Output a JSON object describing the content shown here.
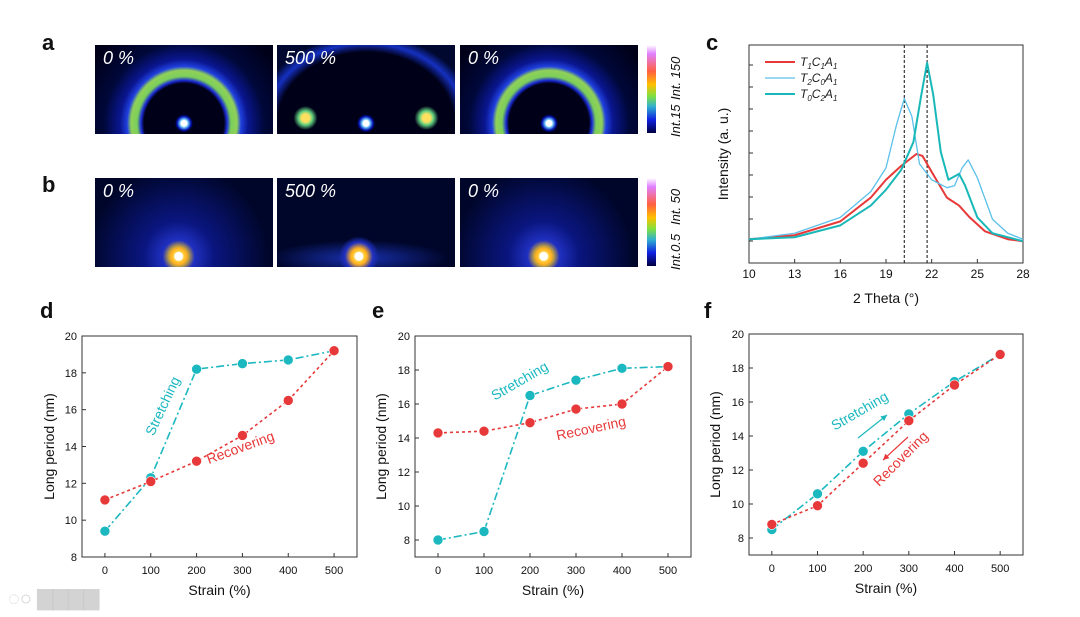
{
  "panel_letters": {
    "a": "a",
    "b": "b",
    "c": "c",
    "d": "d",
    "e": "e",
    "f": "f"
  },
  "panel_a": {
    "images": [
      {
        "label": "0 %"
      },
      {
        "label": "500 %"
      },
      {
        "label": "0 %"
      }
    ],
    "colorbar": {
      "max": "Int. 150",
      "min": "Int.15"
    }
  },
  "panel_b": {
    "images": [
      {
        "label": "0 %"
      },
      {
        "label": "500 %"
      },
      {
        "label": "0 %"
      }
    ],
    "colorbar": {
      "max": "Int. 50",
      "min": "Int.0.5"
    }
  },
  "watermark": "大数跨境",
  "chart_data": [
    {
      "id": "c",
      "type": "line",
      "xlabel": "2 Theta (°)",
      "ylabel": "Intensity (a. u.)",
      "xlim": [
        10,
        28
      ],
      "ylim": [
        0,
        11
      ],
      "xticks": [
        10,
        13,
        16,
        19,
        22,
        25,
        28
      ],
      "xtick_labels": [
        "10",
        "13",
        "16",
        "19",
        "22",
        "25",
        "28"
      ],
      "vlines": [
        20.2,
        21.7
      ],
      "legend": "top-left",
      "series": [
        {
          "name": "T1C1A1",
          "color": "#e8393a",
          "width": 2,
          "x": [
            10,
            13,
            16,
            18,
            19,
            20,
            21,
            21.4,
            22,
            23,
            23.8,
            24.5,
            25.5,
            27,
            28
          ],
          "y": [
            1.2,
            1.4,
            2.1,
            3.3,
            4.2,
            4.9,
            5.5,
            5.4,
            4.6,
            3.3,
            2.9,
            2.3,
            1.6,
            1.2,
            1.1
          ]
        },
        {
          "name": "T2C0A1",
          "color": "#5bc0ea",
          "width": 1.3,
          "x": [
            10,
            13,
            16,
            18,
            19,
            19.7,
            20.2,
            20.7,
            21.2,
            22,
            23,
            23.5,
            24,
            24.4,
            25,
            26,
            27,
            28
          ],
          "y": [
            1.2,
            1.5,
            2.3,
            3.6,
            4.8,
            7.0,
            8.3,
            7.4,
            5.0,
            4.2,
            3.8,
            3.9,
            4.8,
            5.2,
            4.3,
            2.2,
            1.5,
            1.2
          ]
        },
        {
          "name": "T0C2A1",
          "color": "#19b8b8",
          "width": 2,
          "x": [
            10,
            13,
            16,
            18,
            19,
            20,
            20.8,
            21.3,
            21.7,
            22.1,
            22.6,
            23.1,
            23.8,
            24.2,
            25,
            26,
            28
          ],
          "y": [
            1.2,
            1.3,
            1.9,
            2.9,
            3.7,
            4.7,
            6.1,
            8.4,
            10.1,
            8.5,
            5.6,
            4.2,
            4.5,
            3.9,
            2.3,
            1.5,
            1.1
          ]
        }
      ]
    },
    {
      "id": "d",
      "type": "line",
      "xlabel": "Strain (%)",
      "ylabel": "Long period (nm)",
      "xlim": [
        -50,
        550
      ],
      "ylim": [
        8,
        20
      ],
      "x": [
        0,
        100,
        200,
        300,
        400,
        500
      ],
      "yticks": [
        8,
        10,
        12,
        14,
        16,
        18,
        20
      ],
      "series": [
        {
          "name": "Stretching",
          "color": "#1cb8c0",
          "dash": "8 3 2 3",
          "y": [
            9.4,
            12.3,
            18.2,
            18.5,
            18.7,
            19.2
          ]
        },
        {
          "name": "Recovering",
          "color": "#e8393a",
          "dash": "3 3",
          "y": [
            11.1,
            12.1,
            13.2,
            14.6,
            16.5,
            19.2
          ]
        }
      ]
    },
    {
      "id": "e",
      "type": "line",
      "xlabel": "Strain (%)",
      "ylabel": "Long period (nm)",
      "xlim": [
        -50,
        550
      ],
      "ylim": [
        7,
        20
      ],
      "x": [
        0,
        100,
        200,
        300,
        400,
        500
      ],
      "yticks": [
        8,
        10,
        12,
        14,
        16,
        18,
        20
      ],
      "series": [
        {
          "name": "Stretching",
          "color": "#1cb8c0",
          "dash": "8 3 2 3",
          "y": [
            8.0,
            8.5,
            16.5,
            17.4,
            18.1,
            18.2
          ]
        },
        {
          "name": "Recovering",
          "color": "#e8393a",
          "dash": "3 3",
          "y": [
            14.3,
            14.4,
            14.9,
            15.7,
            16.0,
            18.2
          ]
        }
      ]
    },
    {
      "id": "f",
      "type": "line",
      "xlabel": "Strain (%)",
      "ylabel": "Long period (nm)",
      "xlim": [
        -50,
        550
      ],
      "ylim": [
        7,
        20
      ],
      "x": [
        0,
        100,
        200,
        300,
        400,
        500
      ],
      "yticks": [
        8,
        10,
        12,
        14,
        16,
        18,
        20
      ],
      "series": [
        {
          "name": "Stretching",
          "color": "#1cb8c0",
          "dash": "8 3 2 3",
          "y": [
            8.5,
            10.6,
            13.1,
            15.3,
            17.2,
            18.8
          ]
        },
        {
          "name": "Recovering",
          "color": "#e8393a",
          "dash": "3 3",
          "y": [
            8.8,
            9.9,
            12.4,
            14.9,
            17.0,
            18.8
          ]
        }
      ]
    }
  ]
}
